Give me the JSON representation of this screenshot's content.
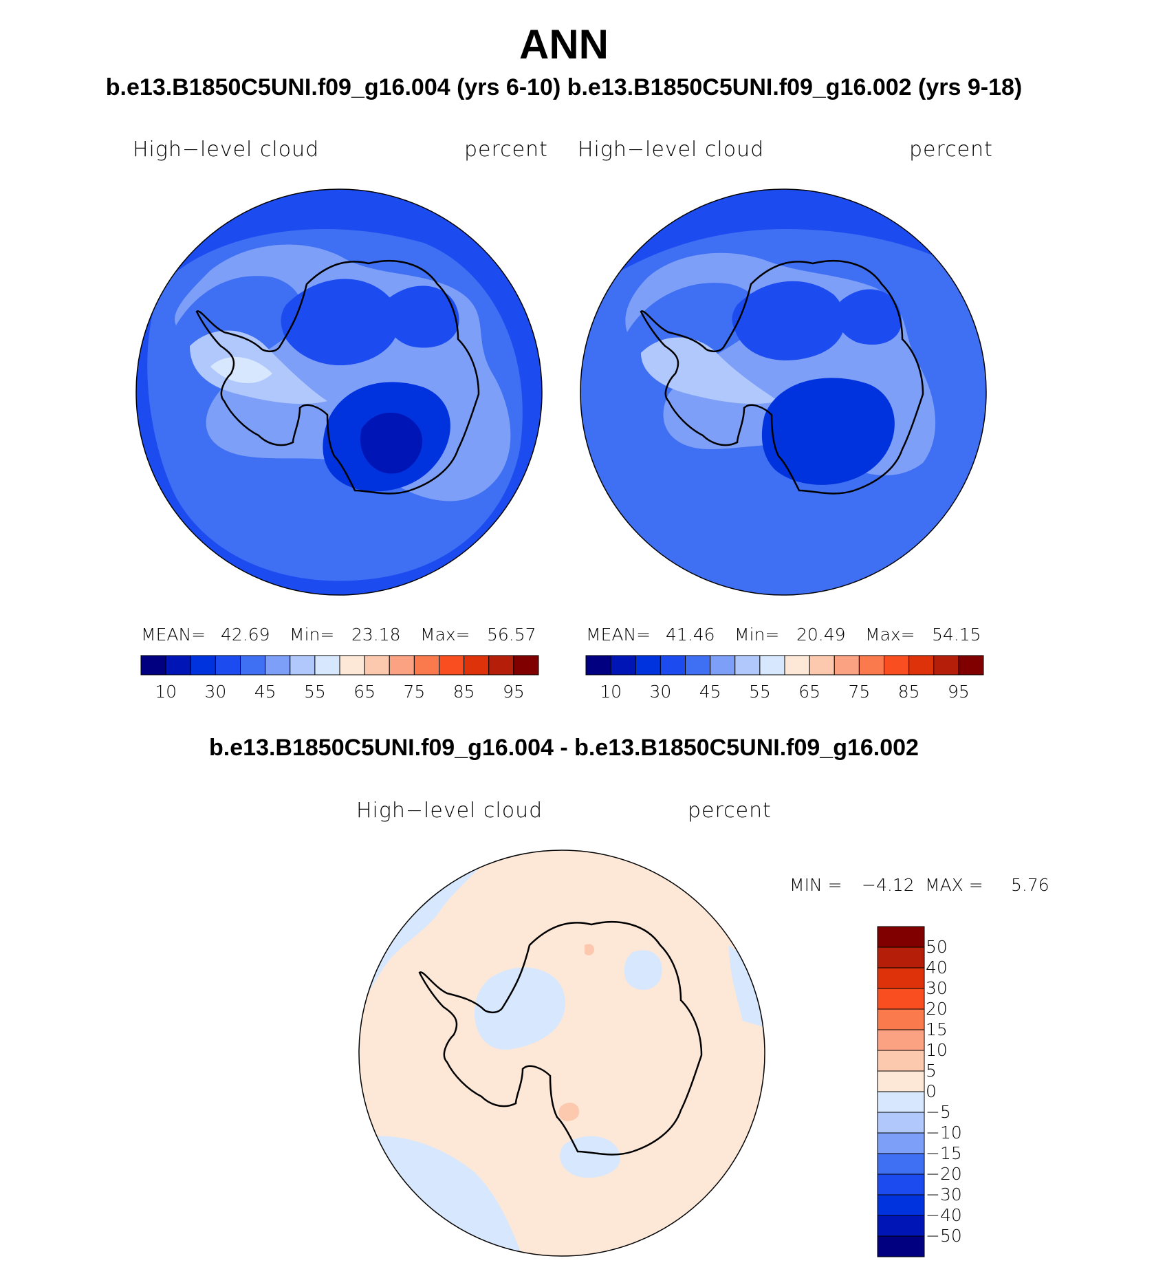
{
  "title": "ANN",
  "subtitle": "b.e13.B1850C5UNI.f09_g16.004 (yrs 6-10) b.e13.B1850C5UNI.f09_g16.002 (yrs 9-18)",
  "panels": [
    {
      "variable": "High−level cloud",
      "units": "percent",
      "stats": {
        "mean_label": "MEAN=",
        "mean": "42.69",
        "min_label": "Min=",
        "min": "23.18",
        "max_label": "Max=",
        "max": "56.57"
      }
    },
    {
      "variable": "High−level cloud",
      "units": "percent",
      "stats": {
        "mean_label": "MEAN=",
        "mean": "41.46",
        "min_label": "Min=",
        "min": "20.49",
        "max_label": "Max=",
        "max": "54.15"
      }
    }
  ],
  "difference": {
    "title": "b.e13.B1850C5UNI.f09_g16.004 - b.e13.B1850C5UNI.f09_g16.002",
    "variable": "High−level cloud",
    "units": "percent",
    "stats": {
      "min_label": "MIN =",
      "min": "−4.12",
      "max_label": "MAX =",
      "max": "5.76"
    }
  },
  "colorbar_main": {
    "colors": [
      "#000080",
      "#0015b5",
      "#0033dd",
      "#1c4cf0",
      "#3f6ff2",
      "#7d9ff7",
      "#b0c8fb",
      "#d7e7fd",
      "#fde8d8",
      "#fcc8ae",
      "#fba283",
      "#fa7a4e",
      "#f94e1f",
      "#dd320a",
      "#b51f0a",
      "#800000"
    ],
    "tick_labels": [
      "10",
      "30",
      "45",
      "55",
      "65",
      "75",
      "85",
      "95"
    ]
  },
  "colorbar_diff": {
    "colors": [
      "#800000",
      "#b51f0a",
      "#dd320a",
      "#f94e1f",
      "#fa7a4e",
      "#fba283",
      "#fcc8ae",
      "#fde8d8",
      "#d7e7fd",
      "#b0c8fb",
      "#7d9ff7",
      "#3f6ff2",
      "#1c4cf0",
      "#0033dd",
      "#0015b5",
      "#000080"
    ],
    "tick_labels": [
      "50",
      "40",
      "30",
      "20",
      "15",
      "10",
      "5",
      "0",
      "−5",
      "−10",
      "−15",
      "−20",
      "−30",
      "−40",
      "−50"
    ]
  }
}
